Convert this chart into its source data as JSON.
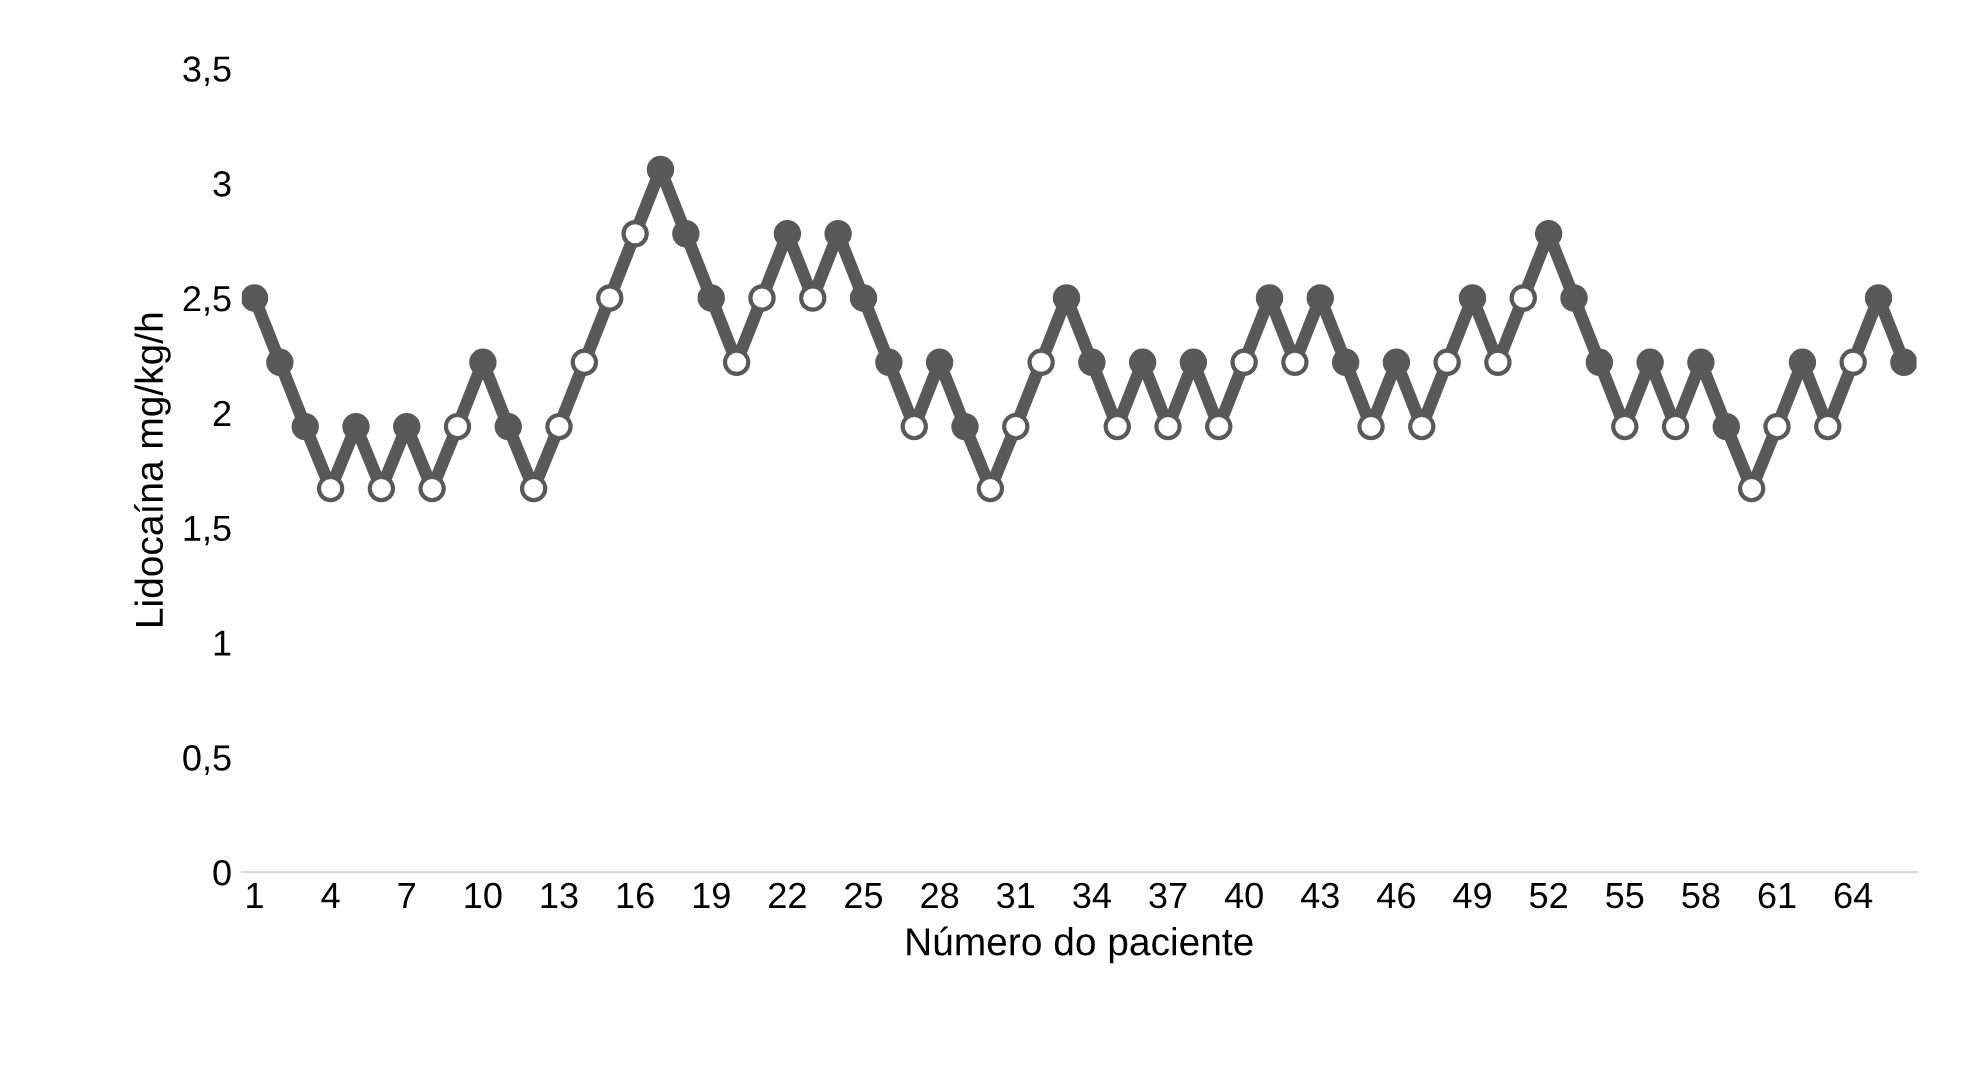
{
  "chart_data": {
    "type": "line",
    "xlabel": "Número do paciente",
    "ylabel": "Lidocaína mg/kg/h",
    "categories": [
      "1",
      null,
      null,
      "4",
      null,
      null,
      "7",
      null,
      null,
      "10",
      null,
      null,
      "13",
      null,
      null,
      "16",
      null,
      null,
      "19",
      null,
      null,
      "22",
      null,
      null,
      "25",
      null,
      null,
      "28",
      null,
      null,
      "31",
      null,
      null,
      "34",
      null,
      null,
      "37",
      null,
      null,
      "40",
      null,
      null,
      "43",
      null,
      null,
      "46",
      null,
      null,
      "49",
      null,
      null,
      "52",
      null,
      null,
      "55",
      null,
      null,
      "58",
      null,
      null,
      "61",
      null,
      null,
      "64",
      null,
      null
    ],
    "ylim": [
      0,
      3.5
    ],
    "yticks": [
      0,
      {
        "value": 0.5,
        "label": "0,5"
      },
      1,
      {
        "value": 1.5,
        "label": "1,5"
      },
      2,
      {
        "value": 2.5,
        "label": "2,5"
      },
      3,
      {
        "value": 3.5,
        "label": "3,5"
      }
    ],
    "grid": false,
    "legend": false,
    "series": [
      {
        "color": "#595959",
        "marker": "none",
        "values": [
          2.5,
          2.22,
          1.94,
          1.67,
          1.94,
          1.67,
          1.94,
          1.67,
          1.94,
          2.22,
          1.94,
          1.67,
          1.94,
          2.22,
          2.5,
          2.78,
          3.06,
          2.78,
          2.5,
          2.22,
          2.5,
          2.78,
          2.5,
          2.78,
          2.5,
          2.22,
          1.94,
          2.22,
          1.94,
          1.67,
          1.94,
          2.22,
          2.5,
          2.22,
          1.94,
          2.22,
          1.94,
          2.22,
          1.94,
          2.22,
          2.5,
          2.22,
          2.5,
          2.22,
          1.94,
          2.22,
          1.94,
          2.22,
          2.5,
          2.22,
          2.5,
          2.78,
          2.5,
          2.22,
          1.94,
          2.22,
          1.94,
          2.22,
          1.94,
          1.67,
          1.94,
          2.22,
          1.94,
          2.22,
          2.5,
          2.22
        ]
      },
      {
        "type": "scatter",
        "color": "#595959",
        "marker": "circle",
        "values": [
          2.5,
          2.22,
          1.94,
          null,
          1.94,
          null,
          1.94,
          null,
          null,
          2.22,
          1.94,
          null,
          null,
          null,
          null,
          null,
          3.06,
          2.78,
          2.5,
          null,
          null,
          2.78,
          null,
          2.78,
          2.5,
          2.22,
          null,
          2.22,
          1.94,
          null,
          null,
          null,
          2.5,
          2.22,
          null,
          2.22,
          null,
          2.22,
          null,
          null,
          2.5,
          null,
          2.5,
          2.22,
          null,
          2.22,
          null,
          null,
          2.5,
          null,
          null,
          2.78,
          2.5,
          2.22,
          null,
          2.22,
          null,
          2.22,
          1.94,
          null,
          null,
          2.22,
          null,
          null,
          2.5,
          2.22
        ]
      },
      {
        "type": "scatter",
        "color": "#ffffff",
        "marker": "circle",
        "values": [
          null,
          null,
          null,
          1.67,
          null,
          1.67,
          null,
          1.67,
          1.94,
          null,
          null,
          1.67,
          1.94,
          2.22,
          2.5,
          2.78,
          null,
          null,
          null,
          2.22,
          2.5,
          null,
          2.5,
          null,
          null,
          null,
          1.94,
          null,
          null,
          1.67,
          1.94,
          2.22,
          null,
          null,
          1.94,
          null,
          1.94,
          null,
          1.94,
          2.22,
          null,
          2.22,
          null,
          null,
          1.94,
          null,
          1.94,
          2.22,
          null,
          2.22,
          2.5,
          null,
          null,
          null,
          1.94,
          null,
          1.94,
          null,
          null,
          1.67,
          1.94,
          null,
          1.94,
          2.22,
          null,
          null
        ]
      }
    ]
  }
}
